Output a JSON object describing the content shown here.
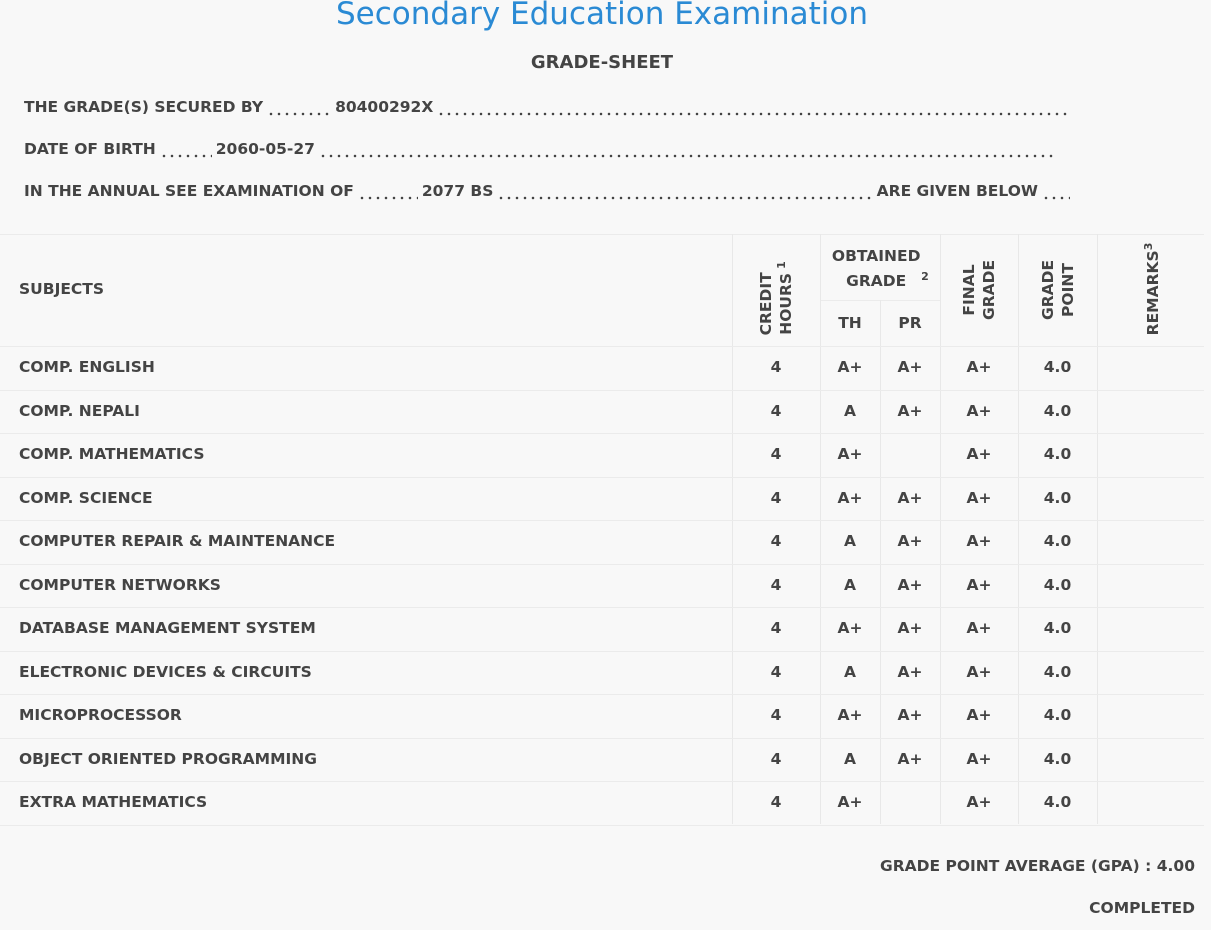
{
  "header": {
    "title": "Secondary Education Examination",
    "subtitle": "GRADE-SHEET"
  },
  "info": {
    "secured_by": {
      "label": "THE GRADE(S) SECURED BY",
      "value": "80400292X"
    },
    "dob": {
      "label": "DATE OF BIRTH",
      "value": "2060-05-27"
    },
    "exam": {
      "label": "IN THE ANNUAL SEE EXAMINATION OF",
      "value": "2077 BS",
      "suffix": "ARE GIVEN BELOW"
    }
  },
  "table": {
    "headers": {
      "subjects": "SUBJECTS",
      "credit": "CREDIT HOURS",
      "credit_note": "1",
      "obtained": "OBTAINED GRADE",
      "obtained_note": "2",
      "th": "TH",
      "pr": "PR",
      "final": "FINAL GRADE",
      "point": "GRADE POINT",
      "remarks": "REMARKS",
      "remarks_note": "3"
    },
    "rows": [
      [
        "COMP. ENGLISH",
        "4",
        "A+",
        "A+",
        "A+",
        "4.0"
      ],
      [
        "COMP. NEPALI",
        "4",
        "A",
        "A+",
        "A+",
        "4.0"
      ],
      [
        "COMP. MATHEMATICS",
        "4",
        "A+",
        null,
        "A+",
        "4.0"
      ],
      [
        "COMP. SCIENCE",
        "4",
        "A+",
        "A+",
        "A+",
        "4.0"
      ],
      [
        "COMPUTER REPAIR & MAINTENANCE",
        "4",
        "A",
        "A+",
        "A+",
        "4.0"
      ],
      [
        "COMPUTER NETWORKS",
        "4",
        "A",
        "A+",
        "A+",
        "4.0"
      ],
      [
        "DATABASE MANAGEMENT SYSTEM",
        "4",
        "A+",
        "A+",
        "A+",
        "4.0"
      ],
      [
        "ELECTRONIC DEVICES & CIRCUITS",
        "4",
        "A",
        "A+",
        "A+",
        "4.0"
      ],
      [
        "MICROPROCESSOR",
        "4",
        "A+",
        "A+",
        "A+",
        "4.0"
      ],
      [
        "OBJECT ORIENTED PROGRAMMING",
        "4",
        "A",
        "A+",
        "A+",
        "4.0"
      ],
      [
        "EXTRA MATHEMATICS",
        "4",
        "A+",
        null,
        "A+",
        "4.0"
      ]
    ]
  },
  "footer": {
    "gpa_label": "GRADE POINT AVERAGE (GPA) :",
    "gpa_value": "4.00",
    "status": "COMPLETED"
  }
}
